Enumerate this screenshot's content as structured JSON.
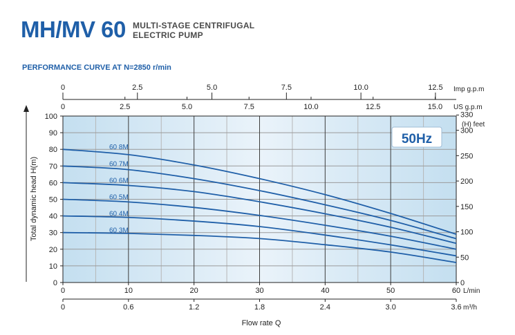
{
  "header": {
    "title": "MH/MV 60",
    "subtitle_line1": "MULTI-STAGE CENTRIFUGAL",
    "subtitle_line2": "ELECTRIC PUMP",
    "performance_label": "PERFORMANCE CURVE AT N=2850  r/min"
  },
  "badge": "50Hz",
  "colors": {
    "curve": "#1f5fa8",
    "grid": "#8a8a8a",
    "bg_light": "#eaf3fa",
    "bg_dark": "#c4dff0",
    "text_accent": "#1f5fa8"
  },
  "chart_data": {
    "type": "line",
    "xlabel": "Flow rate Q",
    "ylabel": "Total dynamic head H(m)",
    "y2label": "(H) feet",
    "xlim": [
      0,
      60
    ],
    "ylim": [
      0,
      100
    ],
    "grid": true,
    "x_ticks": [
      "0",
      "10",
      "20",
      "30",
      "40",
      "50",
      "60"
    ],
    "x_unit": "L/min",
    "m3h_ticks": [
      "0",
      "0.6",
      "1.2",
      "1.8",
      "2.4",
      "3.0",
      "3.6"
    ],
    "m3h_unit": "m³/h",
    "us_ticks": [
      "0",
      "2.5",
      "5.0",
      "7.5",
      "10.0",
      "12.5",
      "15.0"
    ],
    "us_unit": "US g.p.m",
    "imp_ticks": [
      "0",
      "2.5",
      "5.0",
      "7.5",
      "10.0",
      "12.5"
    ],
    "imp_unit": "Imp g.p.m",
    "y_ticks": [
      "0",
      "10",
      "20",
      "30",
      "40",
      "50",
      "60",
      "70",
      "80",
      "90",
      "100"
    ],
    "feet_ticks": [
      "0",
      "50",
      "100",
      "150",
      "200",
      "250",
      "300",
      "330"
    ],
    "series": [
      {
        "name": "60 3M",
        "x": [
          0,
          10,
          20,
          30,
          40,
          50,
          60
        ],
        "y": [
          30,
          29.5,
          28.3,
          26.4,
          22.7,
          18.3,
          12
        ]
      },
      {
        "name": "60 4M",
        "x": [
          0,
          10,
          20,
          30,
          40,
          50,
          60
        ],
        "y": [
          40,
          39.1,
          36.9,
          33.6,
          28.5,
          22.6,
          16
        ]
      },
      {
        "name": "60 5M",
        "x": [
          0,
          10,
          20,
          30,
          40,
          50,
          60
        ],
        "y": [
          50,
          48.4,
          45.1,
          40.3,
          34.4,
          27.8,
          20
        ]
      },
      {
        "name": "60 6M",
        "x": [
          0,
          10,
          20,
          30,
          40,
          50,
          60
        ],
        "y": [
          60,
          58.3,
          54.6,
          48.5,
          41.3,
          33.2,
          23.5
        ]
      },
      {
        "name": "60 7M",
        "x": [
          0,
          10,
          20,
          30,
          40,
          50,
          60
        ],
        "y": [
          70,
          67.8,
          62.4,
          55.2,
          46.7,
          37.3,
          26.3
        ]
      },
      {
        "name": "60 8M",
        "x": [
          0,
          10,
          20,
          30,
          40,
          50,
          60
        ],
        "y": [
          80,
          76.8,
          70.6,
          62.4,
          52.8,
          41.5,
          29
        ]
      }
    ]
  }
}
